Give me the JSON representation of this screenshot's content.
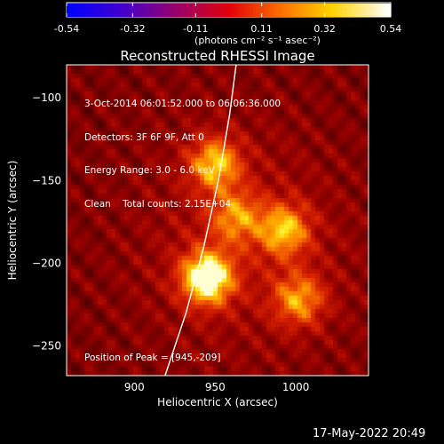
{
  "colorbar": {
    "ticks": [
      "-0.54",
      "-0.32",
      "-0.11",
      "0.11",
      "0.32",
      "0.54"
    ],
    "tick_values": [
      -0.54,
      -0.32,
      -0.11,
      0.11,
      0.32,
      0.54
    ],
    "range": [
      -0.54,
      0.54
    ],
    "units": "(photons cm⁻² s⁻¹ asec⁻²)"
  },
  "chart_data": {
    "type": "heatmap",
    "title": "Reconstructed RHESSI Image",
    "xlabel": "Heliocentric X (arcsec)",
    "ylabel": "Heliocentric Y (arcsec)",
    "xlim": [
      858,
      1045
    ],
    "ylim": [
      -268,
      -80
    ],
    "xticks": [
      900,
      950,
      1000
    ],
    "yticks": [
      -100,
      -150,
      -200,
      -250
    ],
    "colormap": "RHESSI red-temperature",
    "annotations": [
      "3-Oct-2014 06:01:52.000 to 06:06:36.000",
      "Detectors: 3F 6F 9F, Att 0",
      "Energy Range: 3.0 - 6.0 keV",
      "Clean    Total counts: 2.15E+04"
    ],
    "peak_label": "Position of Peak = [945,-209]",
    "peak": [
      945,
      -209
    ],
    "sources": [
      {
        "x": 945,
        "y": -209,
        "peak": 0.54
      },
      {
        "x": 950,
        "y": -140,
        "peak": 0.36
      },
      {
        "x": 993,
        "y": -180,
        "peak": 0.34
      },
      {
        "x": 1002,
        "y": -222,
        "peak": 0.3
      },
      {
        "x": 963,
        "y": -172,
        "peak": 0.26
      }
    ],
    "limb": [
      [
        919,
        -268
      ],
      [
        932,
        -230
      ],
      [
        943,
        -190
      ],
      [
        952,
        -150
      ],
      [
        959,
        -110
      ],
      [
        963,
        -80
      ]
    ]
  },
  "footer_date": "17-May-2022 20:49"
}
